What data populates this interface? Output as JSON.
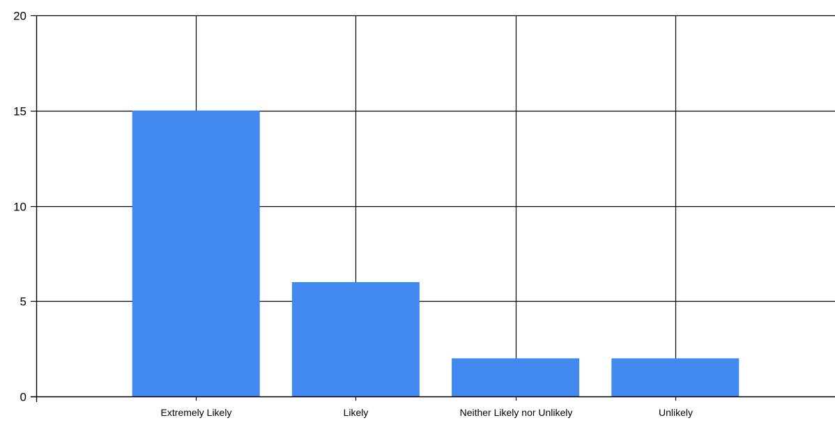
{
  "chart_data": {
    "type": "bar",
    "title": "",
    "xlabel": "",
    "ylabel": "",
    "categories": [
      "Extremely Likely",
      "Likely",
      "Neither Likely nor Unlikely",
      "Unlikely"
    ],
    "values": [
      15,
      6,
      2,
      2
    ],
    "ylim": [
      0,
      20
    ],
    "yticks": [
      0,
      5,
      10,
      15,
      20
    ],
    "grid": true,
    "legend": "none",
    "bar_color": "#4189ee",
    "grid_color": "#000000"
  }
}
